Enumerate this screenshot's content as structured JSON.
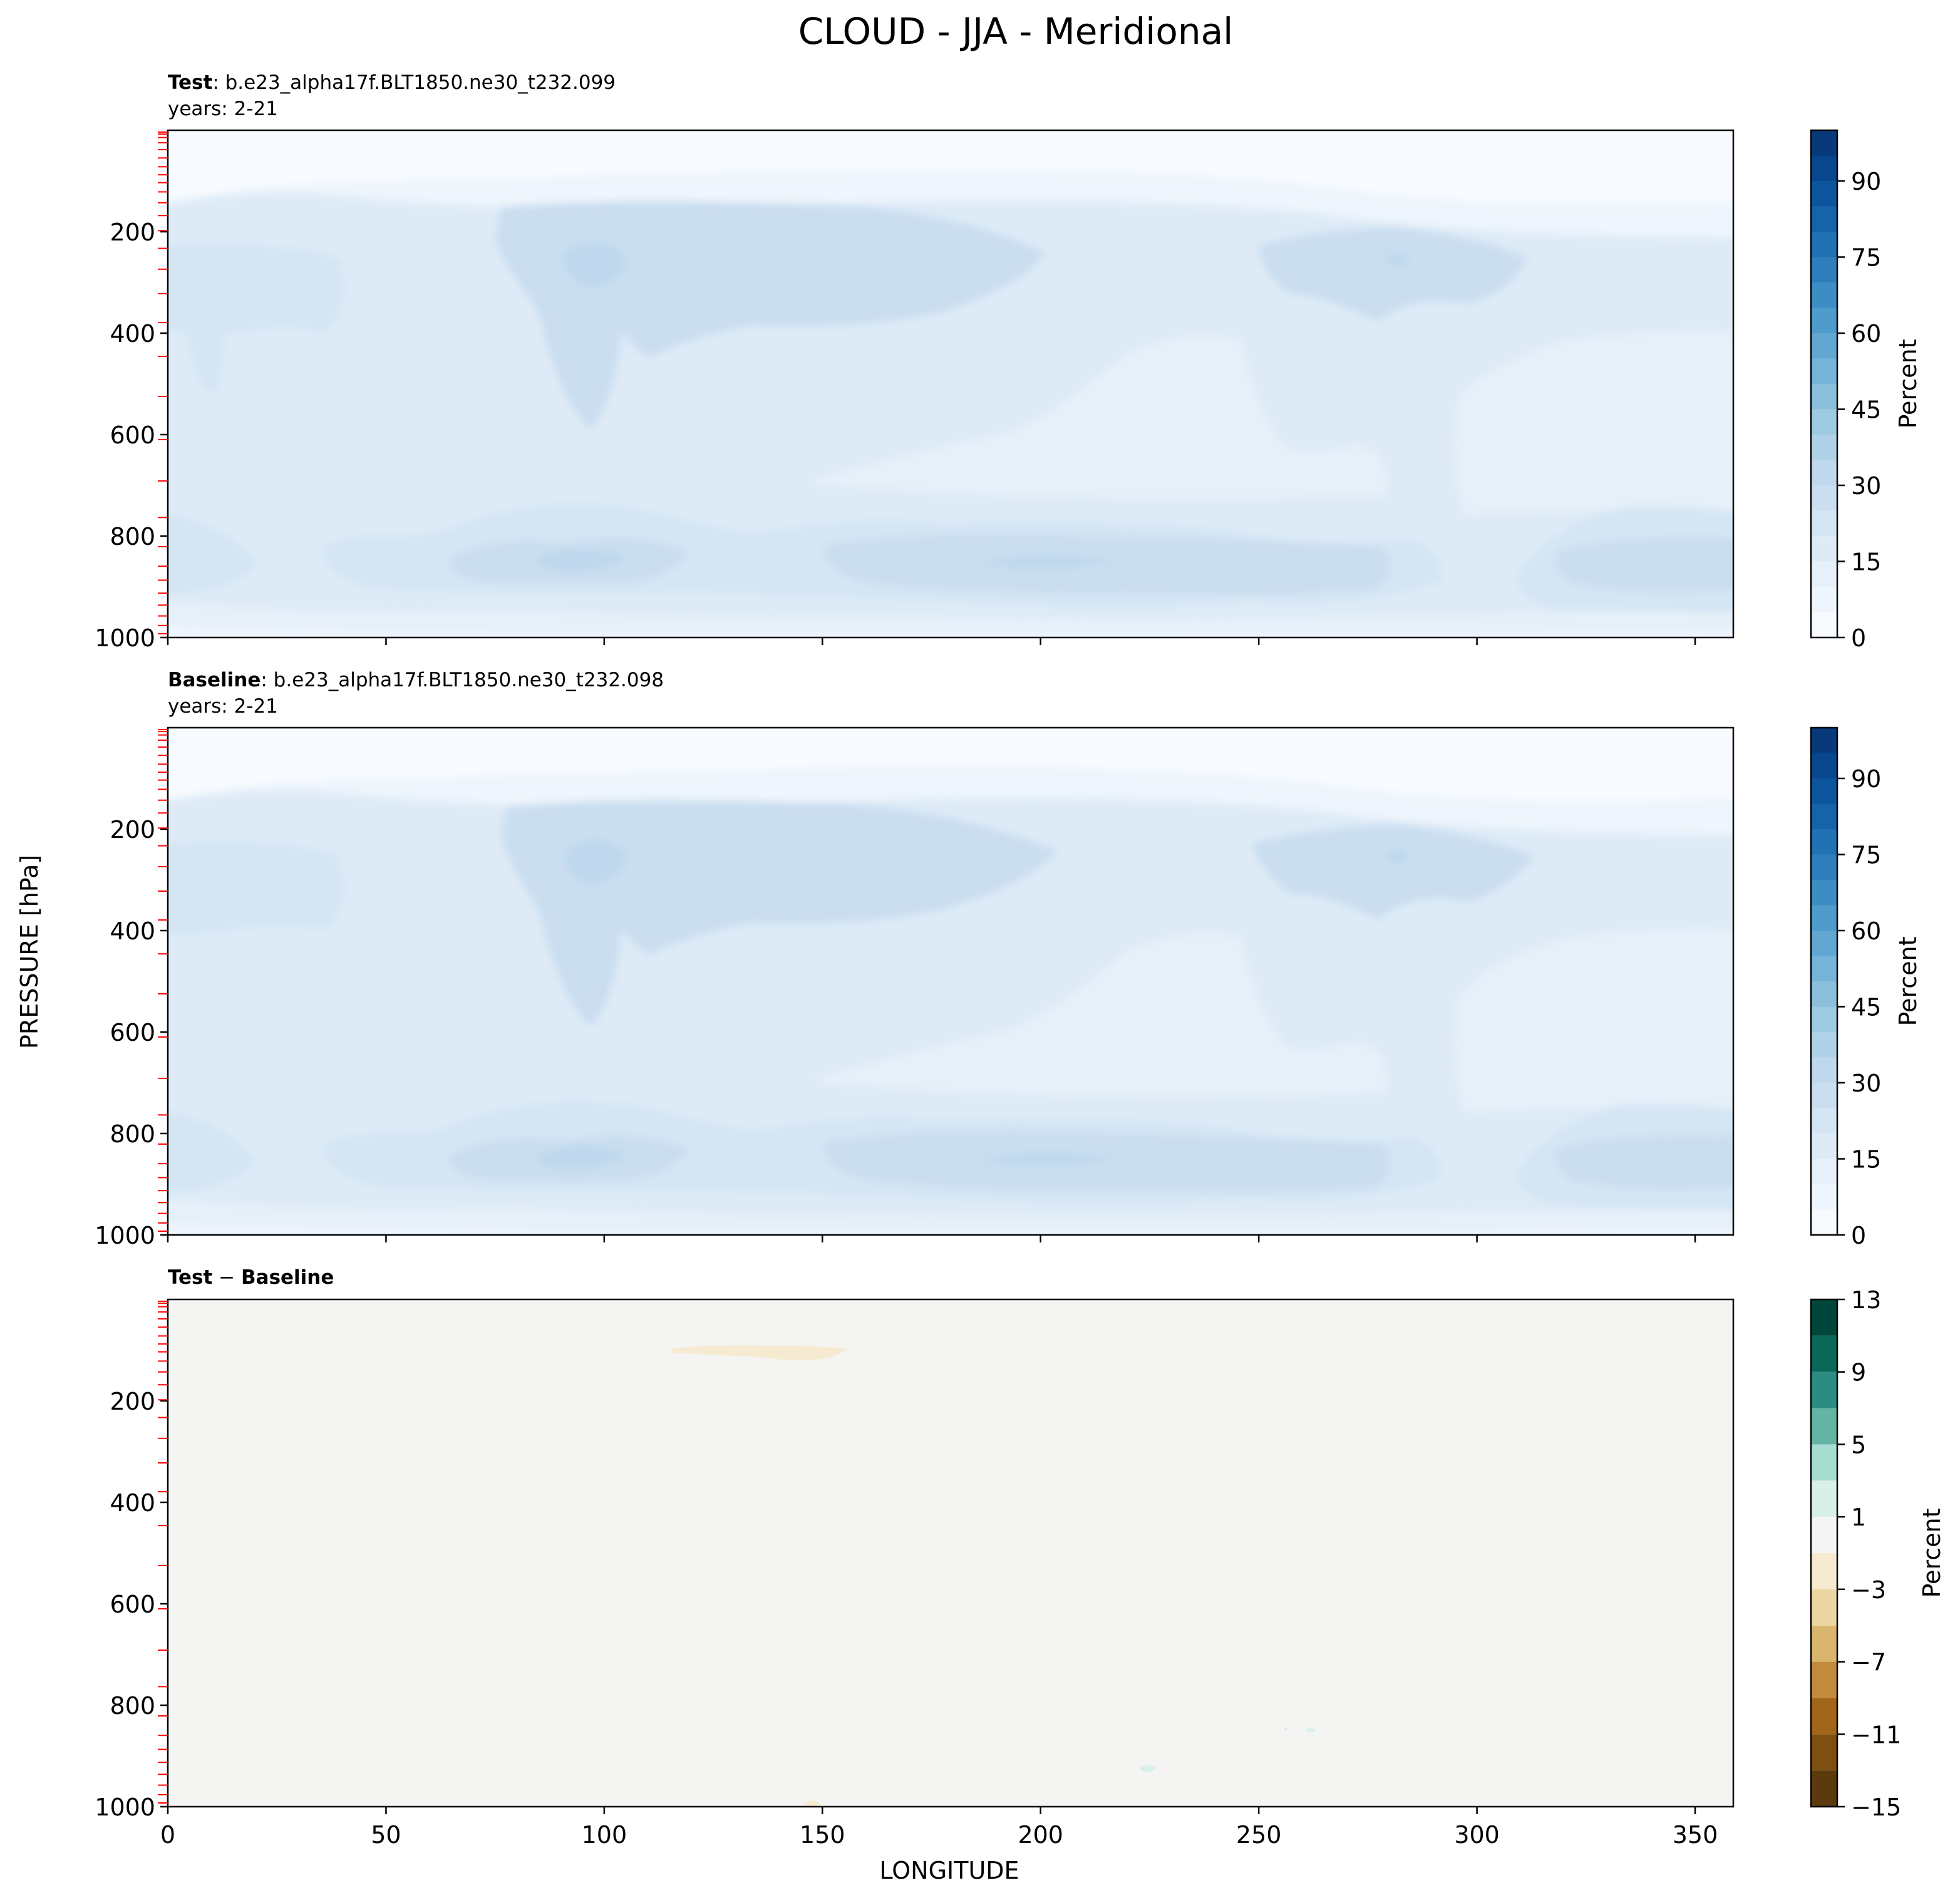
{
  "figure": {
    "title": "CLOUD - JJA - Meridional",
    "ylabel": "PRESSURE [hPa]",
    "xlabel": "LONGITUDE"
  },
  "chart_data": [
    {
      "type": "heatmap",
      "panel": "test",
      "title_bold": "Test",
      "title_rest": ": b.e23_alpha17f.BLT1850.ne30_t232.099",
      "subtitle": "years: 2-21",
      "x_ticks": [
        0,
        50,
        100,
        150,
        200,
        250,
        300,
        350
      ],
      "x_tick_labels_shown": false,
      "xlim": [
        0,
        358.75
      ],
      "y_ticks": [
        200,
        400,
        600,
        800,
        1000
      ],
      "ylim": [
        1000,
        0
      ],
      "model_levels_hPa": [
        3.6,
        7.6,
        14.4,
        24.6,
        38.3,
        54.6,
        72.0,
        87.8,
        103.3,
        121.5,
        142.9,
        168.2,
        197.9,
        232.8,
        273.9,
        322.2,
        379.1,
        445.9,
        524.7,
        609.8,
        691.4,
        763.4,
        820.9,
        859.5,
        887.0,
        912.6,
        936.2,
        957.5,
        976.3,
        992.6
      ],
      "colorbar": {
        "label": "Percent",
        "ticks": [
          0,
          15,
          30,
          45,
          60,
          75,
          90
        ],
        "levels": [
          0,
          5,
          10,
          15,
          20,
          25,
          30,
          35,
          40,
          45,
          50,
          55,
          60,
          65,
          70,
          75,
          80,
          85,
          90,
          95,
          100
        ],
        "cmap": "Blues",
        "colors": [
          "#f7fbff",
          "#eef5fc",
          "#e6f0f9",
          "#deebf7",
          "#d4e5f4",
          "#cadef0",
          "#bfd8ed",
          "#b0d2e8",
          "#9ecae1",
          "#8bbfdc",
          "#75b4d8",
          "#61a7d2",
          "#4f9bcb",
          "#3d8dc4",
          "#2f7ebc",
          "#2171b5",
          "#1663aa",
          "#0c559e",
          "#08478e",
          "#083a7b"
        ]
      },
      "regions": [
        {
          "name": "cirrus-ceiling",
          "level": 10
        },
        {
          "name": "upper-120E-band",
          "level": 15
        },
        {
          "name": "upper-270E-band",
          "level": 15
        },
        {
          "name": "boundary-layer-band",
          "level": 15
        },
        {
          "name": "peak-100E-850hPa",
          "level": 20
        },
        {
          "name": "peak-200E-850hPa",
          "level": 20
        }
      ]
    },
    {
      "type": "heatmap",
      "panel": "baseline",
      "title_bold": "Baseline",
      "title_rest": ": b.e23_alpha17f.BLT1850.ne30_t232.098",
      "subtitle": "years: 2-21",
      "x_ticks": [
        0,
        50,
        100,
        150,
        200,
        250,
        300,
        350
      ],
      "x_tick_labels_shown": false,
      "xlim": [
        0,
        358.75
      ],
      "y_ticks": [
        200,
        400,
        600,
        800,
        1000
      ],
      "ylim": [
        1000,
        0
      ],
      "colorbar": {
        "label": "Percent",
        "ticks": [
          0,
          15,
          30,
          45,
          60,
          75,
          90
        ],
        "cmap": "Blues"
      }
    },
    {
      "type": "heatmap",
      "panel": "difference",
      "title_bold_a": "Test",
      "title_op": " − ",
      "title_bold_b": "Baseline",
      "x_ticks": [
        0,
        50,
        100,
        150,
        200,
        250,
        300,
        350
      ],
      "x_tick_labels_shown": true,
      "xlim": [
        0,
        358.75
      ],
      "y_ticks": [
        200,
        400,
        600,
        800,
        1000
      ],
      "ylim": [
        1000,
        0
      ],
      "background_level": [
        -1,
        1
      ],
      "colorbar": {
        "label": "Percent",
        "ticks": [
          13,
          9,
          5,
          1,
          -3,
          -7,
          -11,
          -15
        ],
        "tick_labels": [
          "13",
          "9",
          "5",
          "1",
          "−3",
          "−7",
          "−11",
          "−15"
        ],
        "levels": [
          -15,
          -13,
          -11,
          -9,
          -7,
          -5,
          -3,
          -1,
          1,
          3,
          5,
          7,
          9,
          11,
          13
        ],
        "cmap": "BrBG",
        "colors": [
          "#5b3a0e",
          "#7d4f10",
          "#a2661a",
          "#c48a3c",
          "#dab56d",
          "#ecd7a2",
          "#f6ead1",
          "#f4f5f2",
          "#d9efea",
          "#a7dcd0",
          "#64b4a5",
          "#2b8c82",
          "#0a6858",
          "#00463a"
        ]
      },
      "features": [
        {
          "name": "negative-anomaly-100hPa-115-155E",
          "range": [
            -3,
            -1
          ]
        },
        {
          "name": "positive-anomaly-925hPa-225E",
          "range": [
            1,
            3
          ]
        },
        {
          "name": "positive-anomaly-850hPa-262E",
          "range": [
            1,
            3
          ]
        },
        {
          "name": "negative-anomaly-1000hPa-148E",
          "range": [
            -3,
            -1
          ]
        }
      ]
    }
  ]
}
